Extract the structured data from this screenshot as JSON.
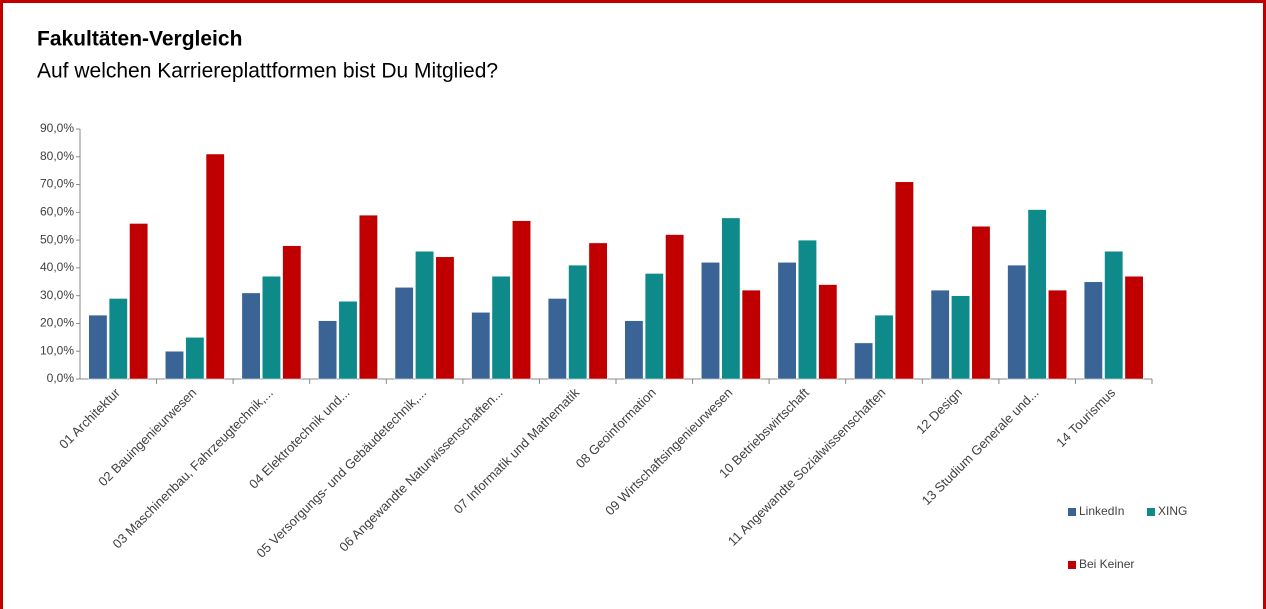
{
  "chart_data": {
    "type": "bar",
    "title": "Fakultäten-Vergleich",
    "subtitle": "Auf welchen Karriereplattformen bist Du Mitglied?",
    "categories": [
      "01 Architektur",
      "02 Bauingenieurwesen",
      "03 Maschinenbau, Fahrzeugtechnik,...",
      "04 Elektrotechnik und...",
      "05 Versorgungs- und Gebäudetechnik,...",
      "06 Angewandte Naturwissenschaften...",
      "07 Informatik und Mathematik",
      "08 Geoinformation",
      "09 Wirtschaftsingenieurwesen",
      "10 Betriebswirtschaft",
      "11 Angewandte Sozialwissenschaften",
      "12 Design",
      "13 Studium Generale und...",
      "14 Tourismus"
    ],
    "series": [
      {
        "name": "LinkedIn",
        "color": "#3a6496",
        "values": [
          23,
          10,
          31,
          21,
          33,
          24,
          29,
          21,
          42,
          42,
          13,
          32,
          41,
          35
        ]
      },
      {
        "name": "XING",
        "color": "#0f8a8a",
        "values": [
          29,
          15,
          37,
          28,
          46,
          37,
          41,
          38,
          58,
          50,
          23,
          30,
          61,
          46
        ]
      },
      {
        "name": "Bei Keiner",
        "color": "#c00000",
        "values": [
          56,
          81,
          48,
          59,
          44,
          57,
          49,
          52,
          32,
          34,
          71,
          55,
          32,
          37
        ]
      }
    ],
    "ylim": [
      0,
      90
    ],
    "yticks": [
      {
        "value": 0,
        "label": "0,0%"
      },
      {
        "value": 10,
        "label": "10,0%"
      },
      {
        "value": 20,
        "label": "20,0%"
      },
      {
        "value": 30,
        "label": "30,0%"
      },
      {
        "value": 40,
        "label": "40,0%"
      },
      {
        "value": 50,
        "label": "50,0%"
      },
      {
        "value": 60,
        "label": "60,0%"
      },
      {
        "value": 70,
        "label": "70,0%"
      },
      {
        "value": 80,
        "label": "80,0%"
      },
      {
        "value": 90,
        "label": "90,0%"
      }
    ],
    "grid": false
  }
}
